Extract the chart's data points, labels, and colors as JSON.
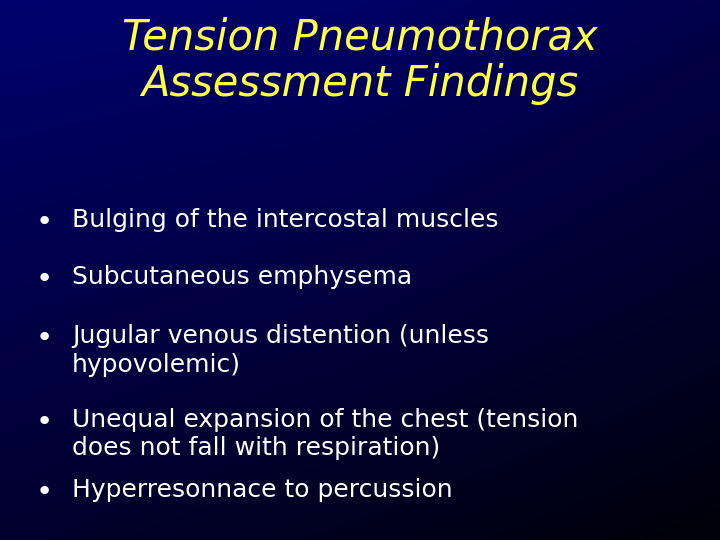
{
  "title_line1": "Tension Pneumothorax",
  "title_line2": "Assessment Findings",
  "title_color": "#FFFF44",
  "bullet_color": "#FFFFFF",
  "bullets": [
    "Bulging of the intercostal muscles",
    "Subcutaneous emphysema",
    "Jugular venous distention (unless\nhypovolemic)",
    "Unequal expansion of the chest (tension\ndoes not fall with respiration)",
    "Hyperresonnace to percussion"
  ],
  "title_fontsize": 30,
  "bullet_fontsize": 18,
  "fig_width": 7.2,
  "fig_height": 5.4,
  "dpi": 100
}
